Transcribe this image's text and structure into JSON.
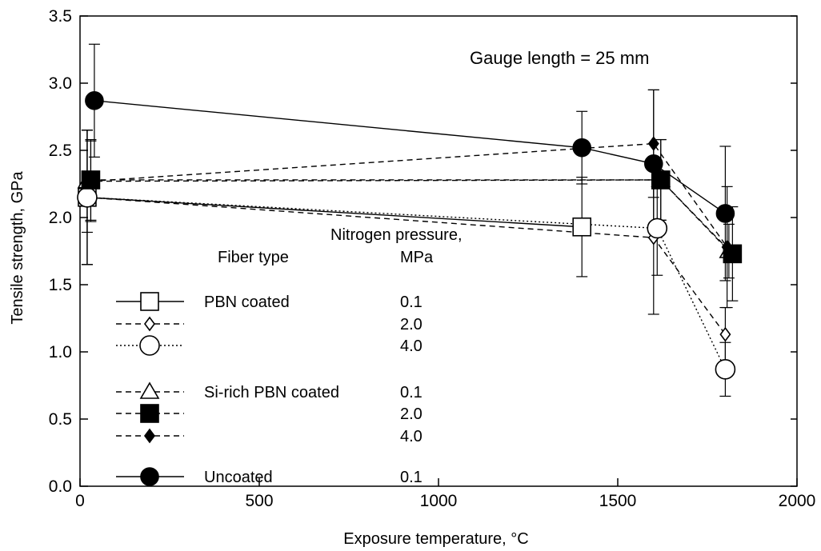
{
  "chart_data": {
    "type": "line",
    "annotation": "Gauge length = 25 mm",
    "xlabel": "Exposure temperature, °C",
    "ylabel": "Tensile strength, GPa",
    "xlim": [
      0,
      2000
    ],
    "ylim": [
      0.0,
      3.5
    ],
    "xticks": [
      "0",
      "500",
      "1000",
      "1500",
      "2000"
    ],
    "yticks": [
      "0.0",
      "0.5",
      "1.0",
      "1.5",
      "2.0",
      "2.5",
      "3.0",
      "3.5"
    ],
    "legend": {
      "fiber_header": "Fiber type",
      "pressure_header_line1": "Nitrogen pressure,",
      "pressure_header_line2": "MPa",
      "entries": [
        {
          "fiber": "PBN coated",
          "pressure": "0.1",
          "series": 0
        },
        {
          "fiber": "",
          "pressure": "2.0",
          "series": 1
        },
        {
          "fiber": "",
          "pressure": "4.0",
          "series": 2
        },
        {
          "fiber": "Si-rich PBN coated",
          "pressure": "0.1",
          "series": 3
        },
        {
          "fiber": "",
          "pressure": "2.0",
          "series": 4
        },
        {
          "fiber": "",
          "pressure": "4.0",
          "series": 5
        },
        {
          "fiber": "Uncoated",
          "pressure": "0.1",
          "series": 6
        }
      ]
    },
    "series": [
      {
        "marker": "open-square",
        "line": "solid",
        "x": [
          20,
          1400
        ],
        "y": [
          2.15,
          1.93
        ],
        "err": [
          0.5,
          0.37
        ]
      },
      {
        "marker": "open-diamond",
        "line": "dashed",
        "x": [
          20,
          1600,
          1800
        ],
        "y": [
          2.15,
          1.85,
          1.13
        ],
        "err": [
          0.5,
          0.57,
          0.2
        ]
      },
      {
        "marker": "open-circle",
        "line": "dotted",
        "x": [
          20,
          1610,
          1800
        ],
        "y": [
          2.15,
          1.92,
          0.87
        ],
        "err": [
          0.5,
          0.35,
          0.2
        ]
      },
      {
        "marker": "open-triangle",
        "line": "dashed",
        "x": [
          20,
          1620,
          1810
        ],
        "y": [
          2.27,
          2.28,
          1.75
        ],
        "err": [
          0.38,
          0.3,
          0.2
        ]
      },
      {
        "marker": "filled-square",
        "line": "dashed",
        "x": [
          30,
          1620,
          1820
        ],
        "y": [
          2.28,
          2.28,
          1.73
        ],
        "err": [
          0.3,
          0.3,
          0.35
        ]
      },
      {
        "marker": "filled-diamond",
        "line": "dashed",
        "x": [
          30,
          1600,
          1805
        ],
        "y": [
          2.27,
          2.55,
          1.78
        ],
        "err": [
          0.3,
          0.4,
          0.45
        ]
      },
      {
        "marker": "filled-circle",
        "line": "solid",
        "x": [
          40,
          1400,
          1600,
          1800
        ],
        "y": [
          2.87,
          2.52,
          2.4,
          2.03
        ],
        "err": [
          0.42,
          0.27,
          0.55,
          0.5
        ]
      }
    ]
  }
}
